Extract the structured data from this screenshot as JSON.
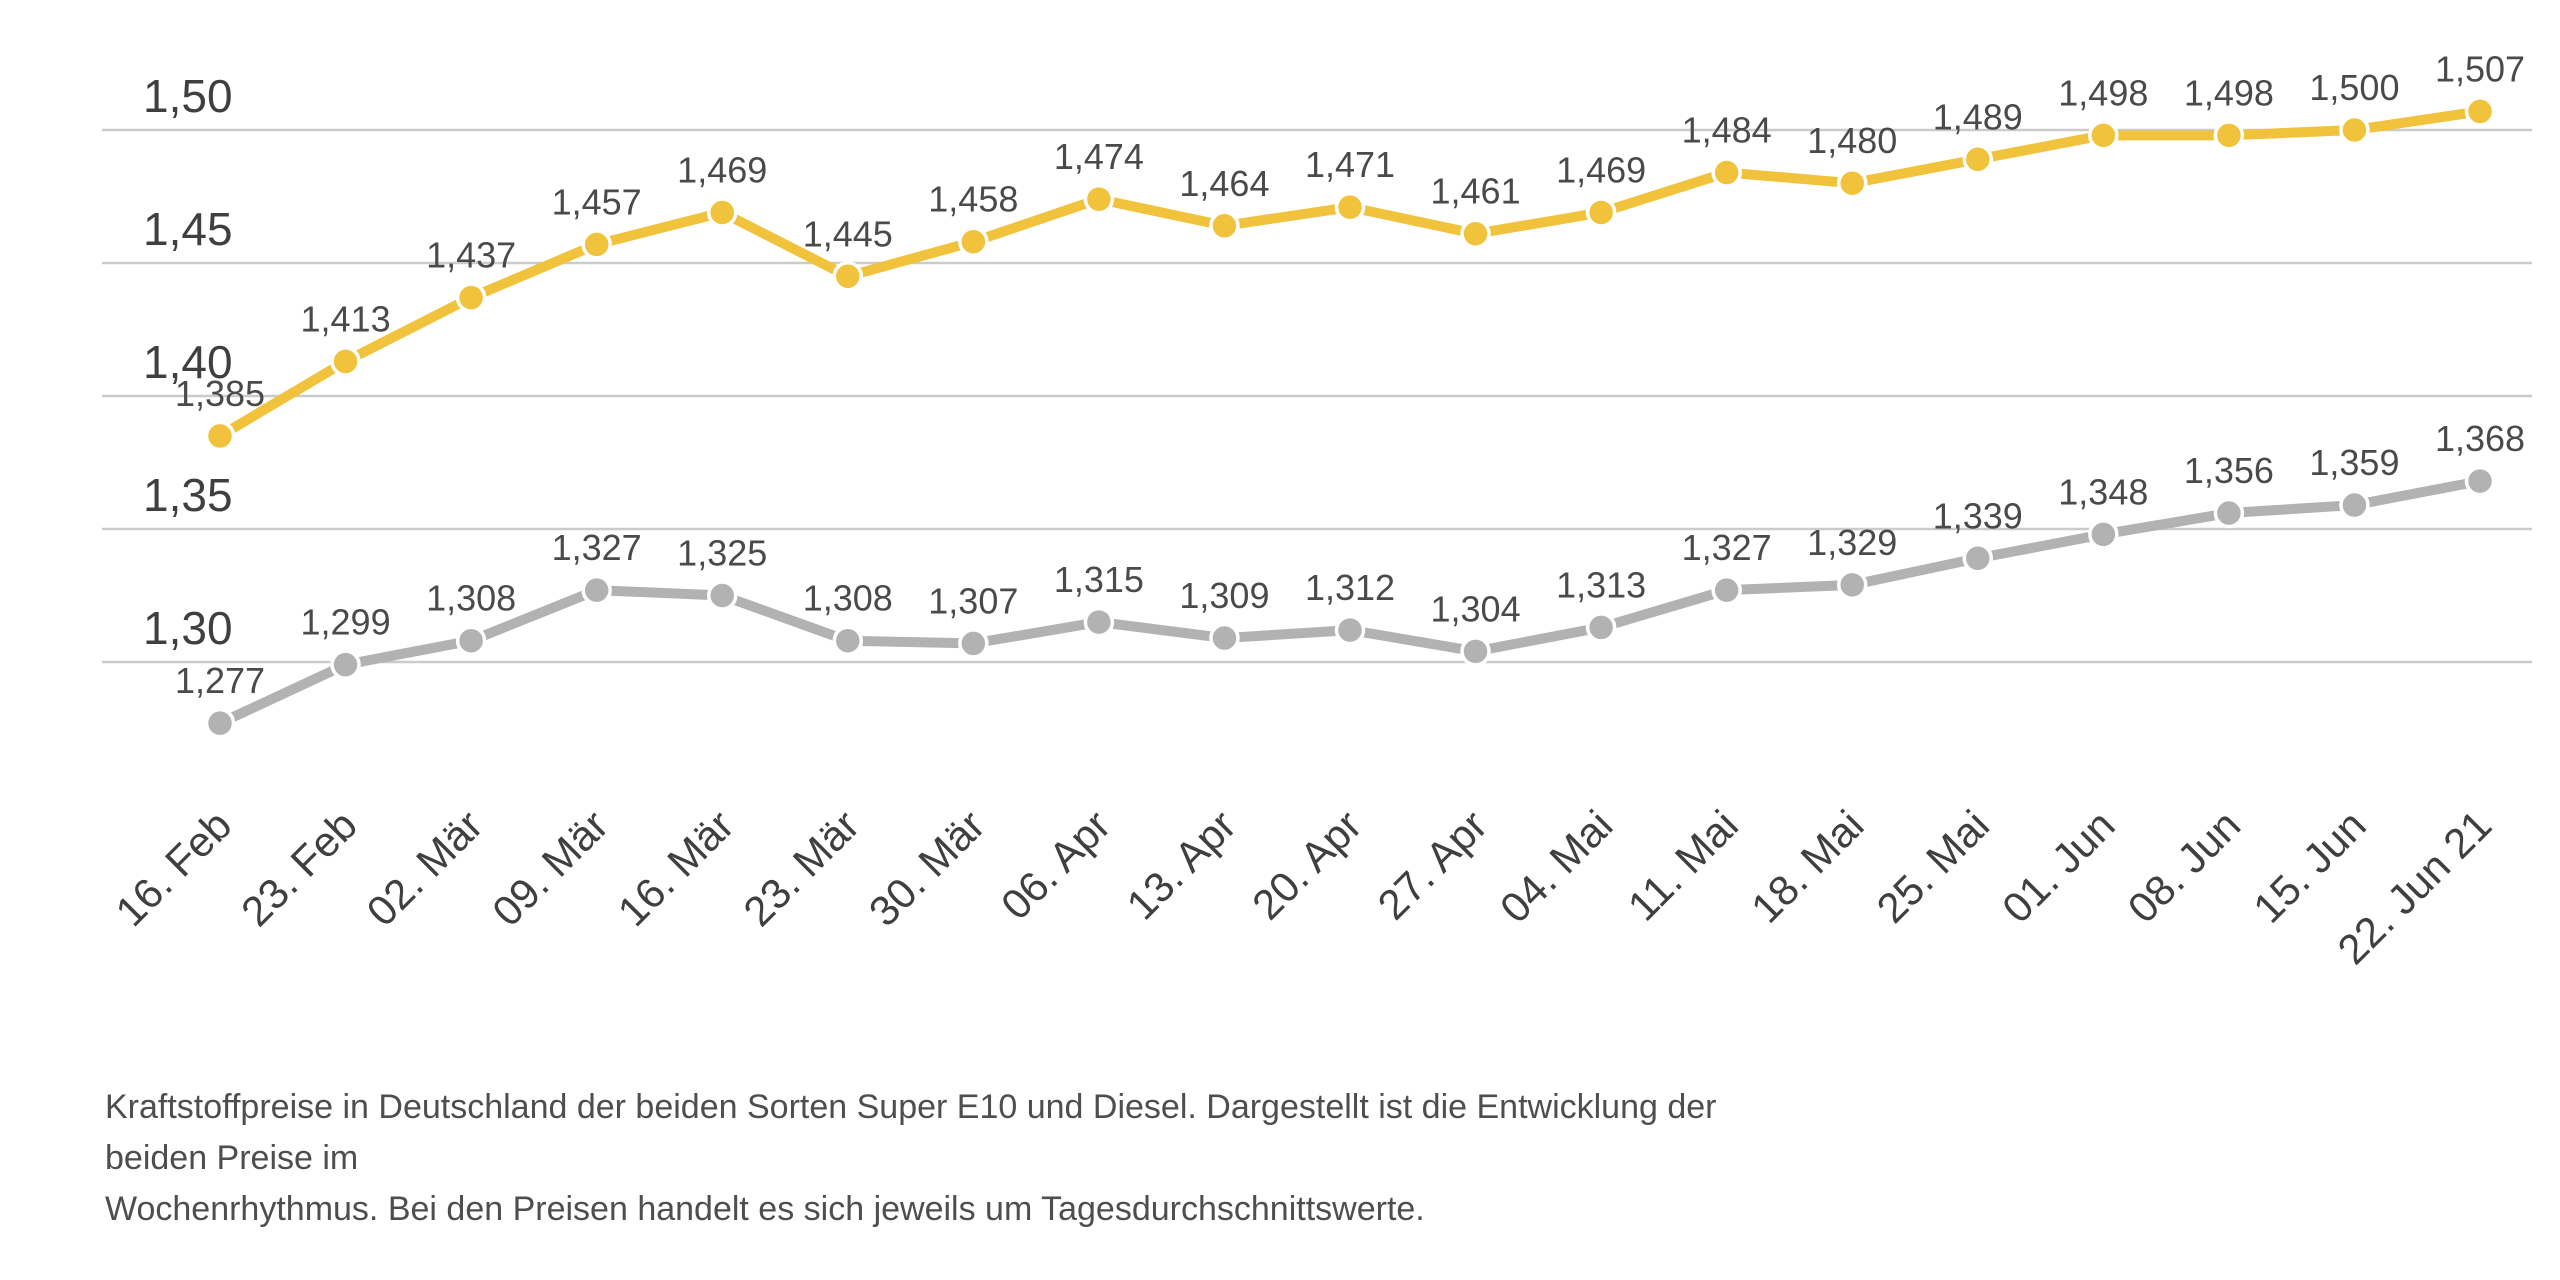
{
  "chart_data": {
    "type": "line",
    "categories": [
      "16. Feb",
      "23. Feb",
      "02. Mär",
      "09. Mär",
      "16. Mär",
      "23. Mär",
      "30. Mär",
      "06. Apr",
      "13. Apr",
      "20. Apr",
      "27. Apr",
      "04. Mai",
      "11. Mai",
      "18. Mai",
      "25. Mai",
      "01. Jun",
      "08. Jun",
      "15. Jun",
      "22. Jun 21"
    ],
    "series": [
      {
        "name": "Super E10",
        "color": "#F1C33C",
        "values": [
          1.385,
          1.413,
          1.437,
          1.457,
          1.469,
          1.445,
          1.458,
          1.474,
          1.464,
          1.471,
          1.461,
          1.469,
          1.484,
          1.48,
          1.489,
          1.498,
          1.498,
          1.5,
          1.507
        ],
        "labels": [
          "1,385",
          "1,413",
          "1,437",
          "1,457",
          "1,469",
          "1,445",
          "1,458",
          "1,474",
          "1,464",
          "1,471",
          "1,461",
          "1,469",
          "1,484",
          "1,480",
          "1,489",
          "1,498",
          "1,498",
          "1,500",
          "1,507"
        ]
      },
      {
        "name": "Diesel",
        "color": "#B2B2B2",
        "values": [
          1.277,
          1.299,
          1.308,
          1.327,
          1.325,
          1.308,
          1.307,
          1.315,
          1.309,
          1.312,
          1.304,
          1.313,
          1.327,
          1.329,
          1.339,
          1.348,
          1.356,
          1.359,
          1.368
        ],
        "labels": [
          "1,277",
          "1,299",
          "1,308",
          "1,327",
          "1,325",
          "1,308",
          "1,307",
          "1,315",
          "1,309",
          "1,312",
          "1,304",
          "1,313",
          "1,327",
          "1,329",
          "1,339",
          "1,348",
          "1,356",
          "1,359",
          "1,368"
        ]
      }
    ],
    "y_axis": {
      "tick_values": [
        1.5,
        1.45,
        1.4,
        1.35,
        1.3
      ],
      "tick_labels": [
        "1,50",
        "1,45",
        "1,40",
        "1,35",
        "1,30"
      ]
    },
    "ylim": [
      1.26,
      1.52
    ],
    "grid": true,
    "legend": "none",
    "value_labels": true,
    "x_label_rotation": -45,
    "colors": {
      "grid": "#CBCBCB",
      "axis_text": "#3F3F3F",
      "value_label": "#4A4A4A",
      "dot_ring": "#FFFFFF"
    },
    "title": "",
    "xlabel": "",
    "ylabel": ""
  },
  "caption": {
    "lines": [
      "Kraftstoffpreise in Deutschland der beiden Sorten Super E10 und Diesel. Dargestellt ist die Entwicklung der beiden Preise im",
      "Wochenrhythmus. Bei den Preisen handelt es sich jeweils um Tagesdurchschnittswerte."
    ],
    "text": "Kraftstoffpreise in Deutschland der beiden Sorten Super E10 und Diesel. Dargestellt ist die Entwicklung der beiden Preise im Wochenrhythmus. Bei den Preisen handelt es sich jeweils um Tagesdurchschnittswerte."
  }
}
